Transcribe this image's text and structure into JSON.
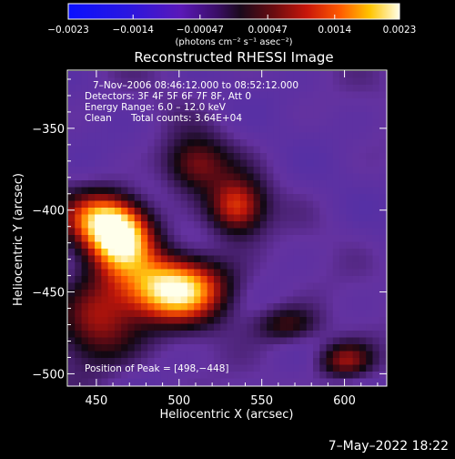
{
  "chart_data": {
    "type": "heatmap",
    "title": "Reconstructed RHESSI Image",
    "xlabel": "Heliocentric X (arcsec)",
    "ylabel": "Heliocentric Y (arcsec)",
    "xlim": [
      433,
      625
    ],
    "ylim": [
      -507,
      -315
    ],
    "x_ticks": [
      450,
      500,
      550,
      600
    ],
    "y_ticks": [
      -350,
      -400,
      -450,
      -500
    ],
    "x_tick_labels": [
      "450",
      "500",
      "550",
      "600"
    ],
    "y_tick_labels": [
      "−350",
      "−400",
      "−450",
      "−500"
    ],
    "colorbar": {
      "ticks": [
        -0.0023,
        -0.0014,
        -0.00047,
        0.00047,
        0.0014,
        0.0023
      ],
      "tick_labels": [
        "−0.0023",
        "−0.0014",
        "−0.00047",
        "0.00047",
        "0.0014",
        "0.0023"
      ],
      "unit_label": "(photons cm⁻² s⁻¹ asec⁻²)",
      "range": [
        -0.0023,
        0.0023
      ]
    },
    "annotations": {
      "time_range": "7–Nov–2006 08:46:12.000 to 08:52:12.000",
      "detectors": "Detectors: 3F 4F 5F 6F 7F 8F, Att 0",
      "energy": "Energy Range: 6.0 – 12.0 keV",
      "clean_label": "Clean",
      "total_counts": "Total counts: 3.64E+04",
      "peak": "Position of Peak = [498,−448]"
    },
    "peak_position": [
      498,
      -448
    ],
    "source_blobs": [
      {
        "x": 498,
        "y": -448,
        "sx": 22,
        "sy": 14,
        "amp": 1.0
      },
      {
        "x": 465,
        "y": -418,
        "sx": 14,
        "sy": 14,
        "amp": 0.88
      },
      {
        "x": 452,
        "y": -405,
        "sx": 16,
        "sy": 12,
        "amp": 0.62
      },
      {
        "x": 535,
        "y": -398,
        "sx": 12,
        "sy": 12,
        "amp": 0.62
      },
      {
        "x": 510,
        "y": -372,
        "sx": 14,
        "sy": 12,
        "amp": 0.45
      },
      {
        "x": 450,
        "y": -470,
        "sx": 18,
        "sy": 20,
        "amp": 0.5
      },
      {
        "x": 600,
        "y": -492,
        "sx": 12,
        "sy": 8,
        "amp": 0.5
      },
      {
        "x": 565,
        "y": -470,
        "sx": 14,
        "sy": 8,
        "amp": 0.38
      }
    ]
  },
  "footer": {
    "date": "7–May–2022 18:22"
  }
}
